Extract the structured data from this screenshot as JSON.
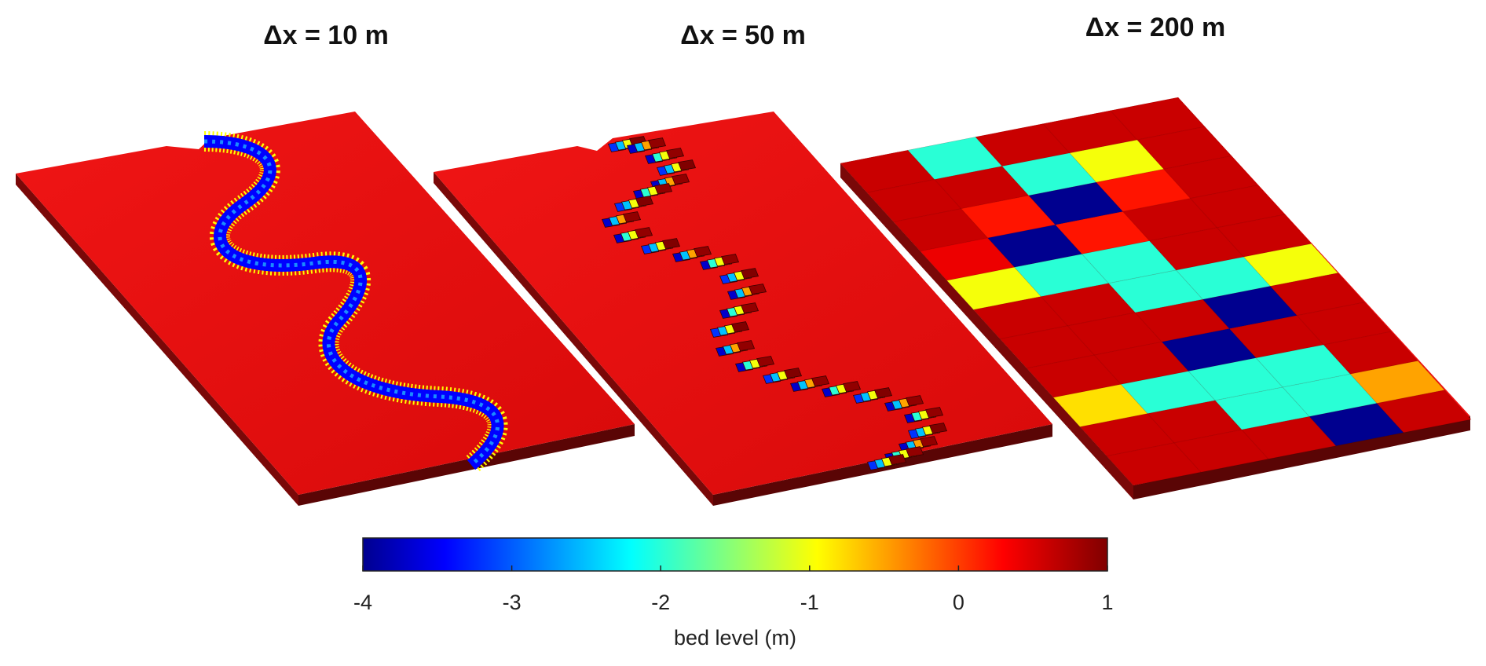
{
  "chart_data": [
    {
      "type": "heatmap",
      "view": "3d-surface",
      "title": "Δx = 10 m",
      "grid_spacing_m": 10,
      "description_values": "Fine grid: meandering channel with bed level about -4 m in the thalweg and 0 to 1 m on the floodplain",
      "channel_bed_level": -4,
      "floodplain_bed_level": 0.6
    },
    {
      "type": "heatmap",
      "view": "3d-surface",
      "title": "Δx = 50 m",
      "grid_spacing_m": 50,
      "channel_bed_level": -2.5,
      "floodplain_bed_level": 0.6
    },
    {
      "type": "heatmap",
      "view": "3d-surface",
      "title": "Δx = 200 m",
      "grid_spacing_m": 200,
      "rows": 11,
      "cols": 5,
      "z": [
        [
          0.6,
          -2,
          0.6,
          0.6,
          0.6
        ],
        [
          0.6,
          0.6,
          -2,
          -1,
          0.6
        ],
        [
          0.6,
          0.2,
          -4,
          0.2,
          0.6
        ],
        [
          0.4,
          -4,
          0.2,
          0.6,
          0.6
        ],
        [
          -1,
          -2,
          -2,
          0.6,
          0.6
        ],
        [
          0.6,
          0.6,
          -2,
          -2,
          -1
        ],
        [
          0.6,
          0.6,
          0.6,
          -4,
          0.6
        ],
        [
          0.6,
          0.6,
          -4,
          0.6,
          0.6
        ],
        [
          -0.8,
          -2,
          -2,
          -2,
          0.6
        ],
        [
          0.6,
          0.6,
          -2,
          -2,
          -0.5
        ],
        [
          0.6,
          0.6,
          0.6,
          -4,
          0.6
        ]
      ]
    }
  ],
  "colorbar": {
    "label": "bed level (m)",
    "min": -4,
    "max": 1,
    "ticks": [
      "-4",
      "-3",
      "-2",
      "-1",
      "0",
      "1"
    ],
    "colormap": "jet",
    "colors": [
      "#00008f",
      "#0000ff",
      "#0080ff",
      "#00ffff",
      "#80ff80",
      "#ffff00",
      "#ff8000",
      "#ff0000",
      "#800000"
    ]
  },
  "colors": {
    "floodplain": "#ee1111",
    "side": "#7a0808",
    "side_dark": "#5a0505"
  }
}
